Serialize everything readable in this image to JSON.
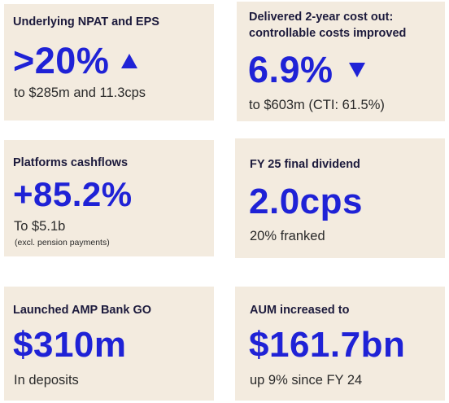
{
  "colors": {
    "card_bg": "#f3ebdf",
    "metric": "#1f22d6",
    "title": "#1c1a3c"
  },
  "cards": [
    {
      "title": "Underlying NPAT and EPS",
      "value": ">20%",
      "trend_icon": "triangle-up-icon",
      "subtitle": "to $285m and 11.3cps"
    },
    {
      "title_line1": "Delivered 2-year cost out:",
      "title_line2": "controllable costs improved",
      "value": "6.9%",
      "trend_icon": "triangle-down-icon",
      "subtitle": "to $603m (CTI: 61.5%)"
    },
    {
      "title": "Platforms cashflows",
      "value": "+85.2%",
      "subtitle": "To $5.1b",
      "note": "(excl. pension payments)"
    },
    {
      "title": "FY 25 final dividend",
      "value": "2.0cps",
      "subtitle": "20% franked"
    },
    {
      "title": "Launched AMP Bank GO",
      "value": "$310m",
      "subtitle": "In deposits"
    },
    {
      "title": "AUM increased to",
      "value": "$161.7bn",
      "subtitle": "up 9% since FY 24"
    }
  ]
}
